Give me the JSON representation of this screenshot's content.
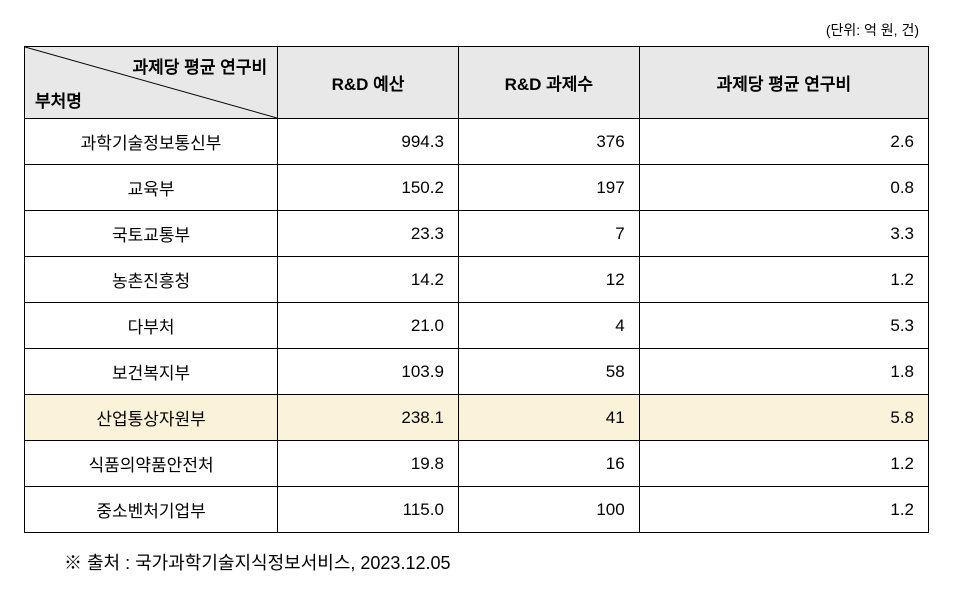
{
  "unit_label": "(단위: 억 원, 건)",
  "header": {
    "diag_top": "과제당 평균 연구비",
    "diag_bottom": "부처명",
    "col1": "R&D 예산",
    "col2": "R&D 과제수",
    "col3": "과제당 평균 연구비"
  },
  "rows": [
    {
      "name": "과학기술정보통신부",
      "budget": "994.3",
      "count": "376",
      "avg": "2.6",
      "highlight": false
    },
    {
      "name": "교육부",
      "budget": "150.2",
      "count": "197",
      "avg": "0.8",
      "highlight": false
    },
    {
      "name": "국토교통부",
      "budget": "23.3",
      "count": "7",
      "avg": "3.3",
      "highlight": false
    },
    {
      "name": "농촌진흥청",
      "budget": "14.2",
      "count": "12",
      "avg": "1.2",
      "highlight": false
    },
    {
      "name": "다부처",
      "budget": "21.0",
      "count": "4",
      "avg": "5.3",
      "highlight": false
    },
    {
      "name": "보건복지부",
      "budget": "103.9",
      "count": "58",
      "avg": "1.8",
      "highlight": false
    },
    {
      "name": "산업통상자원부",
      "budget": "238.1",
      "count": "41",
      "avg": "5.8",
      "highlight": true
    },
    {
      "name": "식품의약품안전처",
      "budget": "19.8",
      "count": "16",
      "avg": "1.2",
      "highlight": false
    },
    {
      "name": "중소벤처기업부",
      "budget": "115.0",
      "count": "100",
      "avg": "1.2",
      "highlight": false
    }
  ],
  "source": "※  출처  :  국가과학기술지식정보서비스, 2023.12.05",
  "colors": {
    "header_bg": "#e8e8e8",
    "highlight_bg": "#faf3da",
    "border": "#000000",
    "background": "#ffffff",
    "text": "#000000"
  }
}
